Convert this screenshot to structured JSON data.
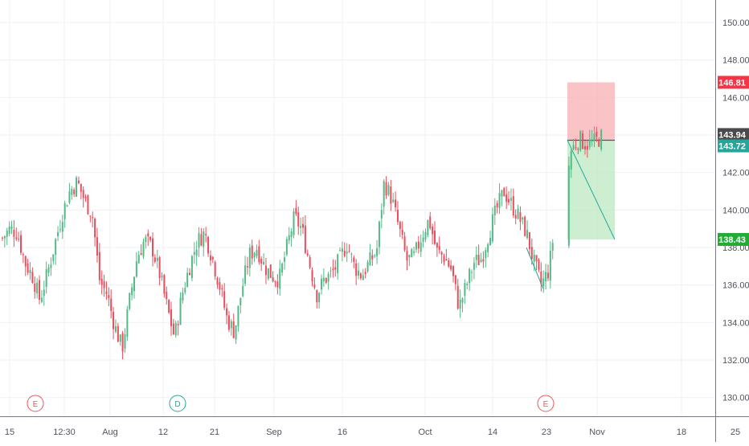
{
  "colors": {
    "up": "#53b987",
    "down": "#eb4d5c",
    "grid": "#eef0f3",
    "axis_line": "#787b86",
    "tick_text": "#50535e",
    "stop_fill": "#f7a5a9",
    "target_fill": "#bde8c2",
    "stop_label": "#f23645",
    "target_label": "#22ab35",
    "last_price": "#4a4a4a",
    "entry_label": "#26a69a",
    "trend_line": "#26a69a",
    "earnings_marker": "#e85b5b",
    "dividend_marker": "#26a69a"
  },
  "chart_data": {
    "type": "candlestick",
    "ylim": [
      129,
      151.2
    ],
    "y_ticks": [
      "130.00",
      "132.00",
      "134.00",
      "136.00",
      "138.00",
      "140.00",
      "142.00",
      "144.00",
      "146.00",
      "148.00",
      "150.00"
    ],
    "x_ticks": [
      "15",
      "12:30",
      "Aug",
      "12",
      "21",
      "Sep",
      "16",
      "Oct",
      "14",
      "23",
      "Nov",
      "18",
      "25"
    ],
    "grid": true,
    "price_labels": [
      {
        "text": "146.81",
        "value": 146.81,
        "role": "stop"
      },
      {
        "text": "143.94",
        "value": 143.94,
        "role": "last"
      },
      {
        "text": "143.72",
        "value": 143.72,
        "role": "entry"
      },
      {
        "text": "138.43",
        "value": 138.43,
        "role": "target"
      }
    ],
    "position": {
      "stop": 146.81,
      "entry": 143.72,
      "target": 138.43
    },
    "markers": [
      {
        "label": "E",
        "kind": "earnings"
      },
      {
        "label": "D",
        "kind": "dividend"
      },
      {
        "label": "E",
        "kind": "earnings"
      }
    ],
    "price_path": [
      138.5,
      139.0,
      138.8,
      137.2,
      136.5,
      135.2,
      136.6,
      138.2,
      139.8,
      141.0,
      141.5,
      140.5,
      139.8,
      136.2,
      135.5,
      133.8,
      132.6,
      135.2,
      137.5,
      138.4,
      138.0,
      136.6,
      134.8,
      133.2,
      135.5,
      137.0,
      138.3,
      138.8,
      137.5,
      136.0,
      134.2,
      133.5,
      135.8,
      137.6,
      138.0,
      137.0,
      136.5,
      136.3,
      138.0,
      139.6,
      139.0,
      137.2,
      135.5,
      136.3,
      136.6,
      137.3,
      138.2,
      137.0,
      136.5,
      137.2,
      137.8,
      141.5,
      140.6,
      139.0,
      137.3,
      137.5,
      138.6,
      139.5,
      137.8,
      137.5,
      136.8,
      134.8,
      136.0,
      137.2,
      137.4,
      138.8,
      140.0,
      141.0,
      140.3,
      139.6,
      138.8,
      137.2,
      136.0,
      136.8,
      139.8,
      140.6,
      143.2,
      143.8,
      143.5,
      143.6,
      143.9
    ]
  }
}
